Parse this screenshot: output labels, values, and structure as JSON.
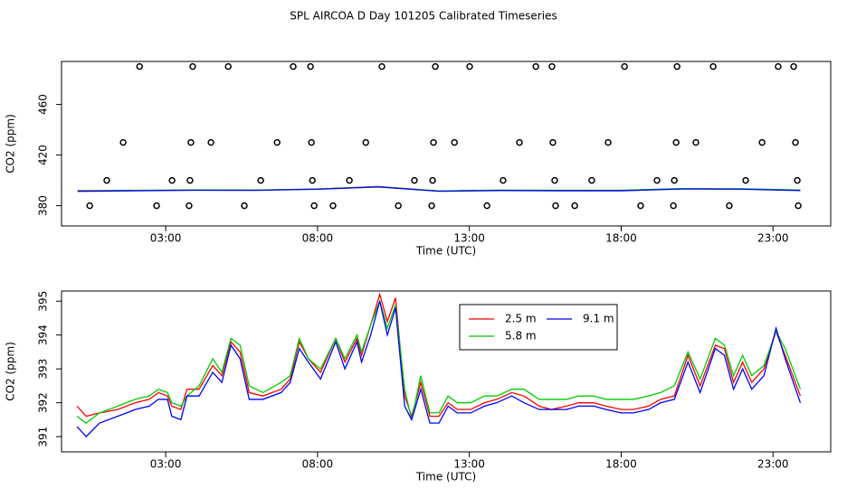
{
  "chart_data": [
    {
      "type": "scatter",
      "title": "SPL AIRCOA D  Day 101205  Calibrated Timeseries",
      "xlabel": "Time (UTC)",
      "ylabel": "CO2 (ppm)",
      "xlim": [
        -0.43,
        24.9
      ],
      "ylim": [
        364,
        494
      ],
      "xticks": [
        {
          "value": 3,
          "label": "03:00"
        },
        {
          "value": 8,
          "label": "08:00"
        },
        {
          "value": 13,
          "label": "13:00"
        },
        {
          "value": 18,
          "label": "18:00"
        },
        {
          "value": 23,
          "label": "23:00"
        }
      ],
      "yticks": [
        380,
        420,
        460
      ],
      "marker_color": "#000000",
      "x": [
        0.5,
        1.06,
        1.6,
        2.14,
        2.7,
        3.21,
        3.77,
        3.8,
        3.83,
        3.89,
        4.49,
        5.06,
        5.59,
        6.13,
        6.67,
        7.2,
        7.77,
        7.8,
        7.83,
        7.89,
        8.51,
        9.05,
        9.59,
        10.12,
        10.66,
        11.19,
        11.76,
        11.79,
        11.82,
        11.88,
        12.51,
        13.01,
        13.58,
        14.11,
        14.65,
        15.19,
        15.72,
        15.75,
        15.81,
        15.84,
        16.47,
        17.03,
        17.57,
        18.11,
        18.64,
        19.18,
        19.72,
        19.75,
        19.81,
        19.84,
        20.46,
        21.03,
        21.56,
        22.1,
        22.64,
        23.17,
        23.68,
        23.74,
        23.8,
        23.83
      ],
      "values": [
        380,
        400,
        430,
        490,
        380,
        400,
        380,
        400,
        430,
        490,
        430,
        490,
        380,
        400,
        430,
        490,
        490,
        430,
        400,
        380,
        380,
        400,
        430,
        490,
        380,
        400,
        380,
        400,
        430,
        490,
        430,
        490,
        380,
        400,
        430,
        490,
        490,
        430,
        400,
        380,
        380,
        400,
        430,
        490,
        380,
        400,
        380,
        400,
        430,
        490,
        430,
        490,
        380,
        400,
        430,
        490,
        490,
        430,
        400,
        380
      ],
      "line_x": [
        0.1,
        2,
        4,
        6,
        8,
        10,
        12,
        14,
        16,
        18,
        20,
        22,
        23.9
      ],
      "series": [
        {
          "color": "#ff0000",
          "values": [
            391.9,
            392.0,
            392.4,
            392.3,
            393.2,
            395.1,
            391.6,
            392.2,
            391.9,
            391.9,
            393.4,
            393.2,
            392.2
          ]
        },
        {
          "color": "#00cc00",
          "values": [
            391.6,
            392.1,
            392.5,
            392.4,
            393.2,
            395.0,
            391.7,
            392.3,
            392.2,
            392.2,
            393.5,
            393.4,
            392.4
          ]
        },
        {
          "color": "#0000ff",
          "values": [
            391.3,
            391.8,
            392.2,
            392.1,
            393.0,
            394.8,
            391.4,
            392.0,
            391.8,
            391.8,
            393.2,
            393.0,
            392.0
          ]
        }
      ]
    },
    {
      "type": "line",
      "xlabel": "Time (UTC)",
      "ylabel": "CO2 (ppm)",
      "xlim": [
        -0.43,
        24.9
      ],
      "ylim": [
        390.55,
        395.3
      ],
      "xticks": [
        {
          "value": 3,
          "label": "03:00"
        },
        {
          "value": 8,
          "label": "08:00"
        },
        {
          "value": 13,
          "label": "13:00"
        },
        {
          "value": 18,
          "label": "18:00"
        },
        {
          "value": 23,
          "label": "23:00"
        }
      ],
      "yticks": [
        391,
        392,
        393,
        394,
        395
      ],
      "legend": "top-center",
      "x": [
        0.08,
        0.38,
        0.82,
        1.42,
        2.0,
        2.46,
        2.76,
        3.06,
        3.2,
        3.5,
        3.7,
        4.1,
        4.55,
        4.85,
        5.15,
        5.45,
        5.75,
        6.2,
        6.8,
        7.1,
        7.4,
        7.7,
        8.1,
        8.6,
        8.9,
        9.3,
        9.45,
        9.75,
        10.05,
        10.3,
        10.57,
        10.87,
        11.1,
        11.4,
        11.7,
        12.0,
        12.3,
        12.6,
        13.04,
        13.5,
        13.9,
        14.4,
        14.8,
        15.3,
        15.7,
        16.2,
        16.6,
        17.1,
        17.5,
        18.0,
        18.4,
        18.9,
        19.3,
        19.75,
        20.2,
        20.6,
        21.1,
        21.4,
        21.7,
        22.0,
        22.3,
        22.7,
        23.1,
        23.4,
        23.9
      ],
      "series": [
        {
          "name": "2.5 m",
          "color": "#ff0000",
          "values": [
            391.9,
            391.6,
            391.7,
            391.8,
            392.0,
            392.1,
            392.3,
            392.2,
            391.9,
            391.8,
            392.4,
            392.4,
            393.1,
            392.8,
            393.8,
            393.5,
            392.3,
            392.2,
            392.4,
            392.7,
            393.8,
            393.3,
            392.9,
            393.9,
            393.2,
            393.9,
            393.4,
            394.3,
            395.2,
            394.4,
            395.1,
            392.2,
            391.6,
            392.6,
            391.6,
            391.6,
            392.0,
            391.8,
            391.8,
            392.0,
            392.1,
            392.3,
            392.2,
            391.9,
            391.8,
            391.9,
            392.0,
            392.0,
            391.9,
            391.8,
            391.8,
            391.9,
            392.1,
            392.2,
            393.4,
            392.5,
            393.7,
            393.6,
            392.6,
            393.2,
            392.6,
            393.0,
            394.1,
            393.4,
            392.2
          ]
        },
        {
          "name": "5.8 m",
          "color": "#00cc00",
          "values": [
            391.6,
            391.4,
            391.7,
            391.9,
            392.1,
            392.2,
            392.4,
            392.3,
            392.0,
            391.9,
            392.2,
            392.5,
            393.3,
            392.9,
            393.9,
            393.7,
            392.5,
            392.3,
            392.6,
            392.8,
            393.9,
            393.3,
            393.0,
            393.9,
            393.3,
            394.0,
            393.5,
            394.3,
            395.0,
            394.2,
            394.9,
            392.4,
            391.5,
            392.8,
            391.7,
            391.7,
            392.2,
            392.0,
            392.0,
            392.2,
            392.2,
            392.4,
            392.4,
            392.1,
            392.1,
            392.1,
            392.2,
            392.2,
            392.1,
            392.1,
            392.1,
            392.2,
            392.3,
            392.5,
            393.5,
            392.7,
            393.9,
            393.7,
            392.8,
            393.4,
            392.8,
            393.1,
            394.1,
            393.6,
            392.4
          ]
        },
        {
          "name": "9.1 m",
          "color": "#0000ff",
          "values": [
            391.3,
            391.0,
            391.4,
            391.6,
            391.8,
            391.9,
            392.1,
            392.1,
            391.6,
            391.5,
            392.2,
            392.2,
            392.9,
            392.6,
            393.7,
            393.3,
            392.1,
            392.1,
            392.3,
            392.6,
            393.6,
            393.2,
            392.7,
            393.8,
            393.0,
            393.8,
            393.2,
            394.0,
            395.0,
            394.0,
            394.8,
            391.9,
            391.5,
            392.4,
            391.4,
            391.4,
            391.9,
            391.7,
            391.7,
            391.9,
            392.0,
            392.2,
            392.0,
            391.8,
            391.8,
            391.8,
            391.9,
            391.9,
            391.8,
            391.7,
            391.7,
            391.8,
            392.0,
            392.1,
            393.2,
            392.3,
            393.6,
            393.4,
            392.4,
            393.0,
            392.4,
            392.8,
            394.2,
            393.3,
            392.0
          ]
        }
      ]
    }
  ]
}
